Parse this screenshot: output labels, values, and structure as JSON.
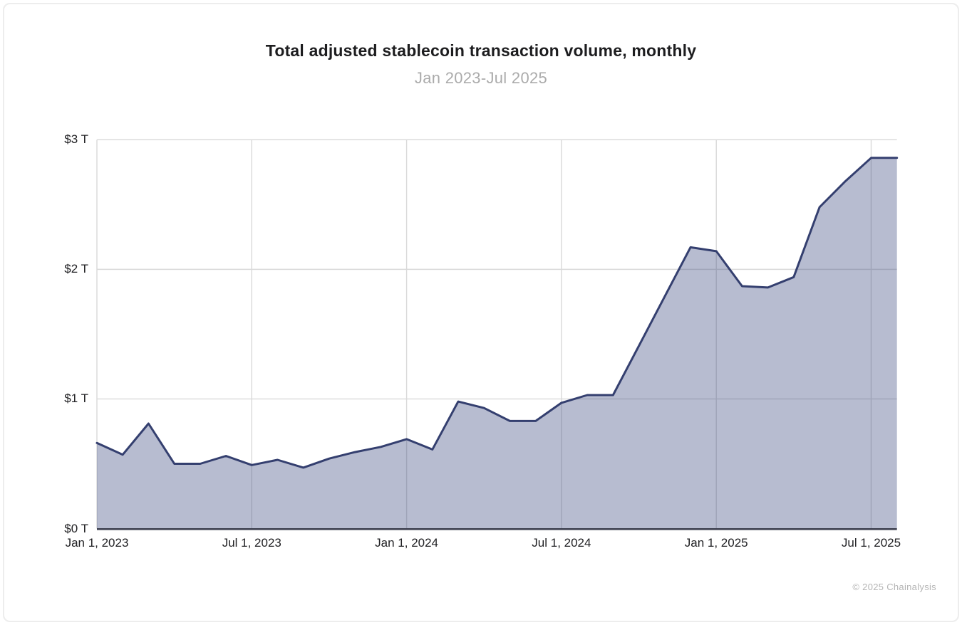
{
  "chart_data": {
    "type": "area",
    "title": "Total adjusted stablecoin transaction volume, monthly",
    "subtitle": "Jan 2023-Jul 2025",
    "unit": "USD trillions",
    "x": [
      "Jan 2023",
      "Feb 2023",
      "Mar 2023",
      "Apr 2023",
      "May 2023",
      "Jun 2023",
      "Jul 2023",
      "Aug 2023",
      "Sep 2023",
      "Oct 2023",
      "Nov 2023",
      "Dec 2023",
      "Jan 2024",
      "Feb 2024",
      "Mar 2024",
      "Apr 2024",
      "May 2024",
      "Jun 2024",
      "Jul 2024",
      "Aug 2024",
      "Sep 2024",
      "Oct 2024",
      "Nov 2024",
      "Dec 2024",
      "Jan 2025",
      "Feb 2025",
      "Mar 2025",
      "Apr 2025",
      "May 2025",
      "Jun 2025",
      "Jul 2025"
    ],
    "values": [
      0.66,
      0.57,
      0.81,
      0.5,
      0.5,
      0.56,
      0.49,
      0.53,
      0.47,
      0.54,
      0.59,
      0.63,
      0.69,
      0.61,
      0.98,
      0.93,
      0.83,
      0.83,
      0.97,
      1.03,
      1.03,
      1.41,
      1.79,
      2.17,
      2.14,
      1.87,
      1.86,
      1.94,
      2.48,
      2.68,
      2.86
    ],
    "ylim": [
      0,
      3
    ],
    "y_ticks": [
      {
        "value": 0,
        "label": "$0 T"
      },
      {
        "value": 1,
        "label": "$1 T"
      },
      {
        "value": 2,
        "label": "$2 T"
      },
      {
        "value": 3,
        "label": "$3 T"
      }
    ],
    "x_ticks": [
      {
        "month_index": 0,
        "label": "Jan 1, 2023"
      },
      {
        "month_index": 6,
        "label": "Jul 1, 2023"
      },
      {
        "month_index": 12,
        "label": "Jan 1, 2024"
      },
      {
        "month_index": 18,
        "label": "Jul 1, 2024"
      },
      {
        "month_index": 24,
        "label": "Jan 1, 2025"
      },
      {
        "month_index": 30,
        "label": "Jul 1, 2025"
      }
    ],
    "grid": true,
    "legend": false,
    "fill_opacity": 0.37,
    "colors": {
      "line": "#343f6f",
      "fill": "#3d4a80",
      "grid": "#d9d9d9",
      "baseline": "#3e4150"
    }
  },
  "footer": {
    "copyright": "© 2025 Chainalysis"
  }
}
